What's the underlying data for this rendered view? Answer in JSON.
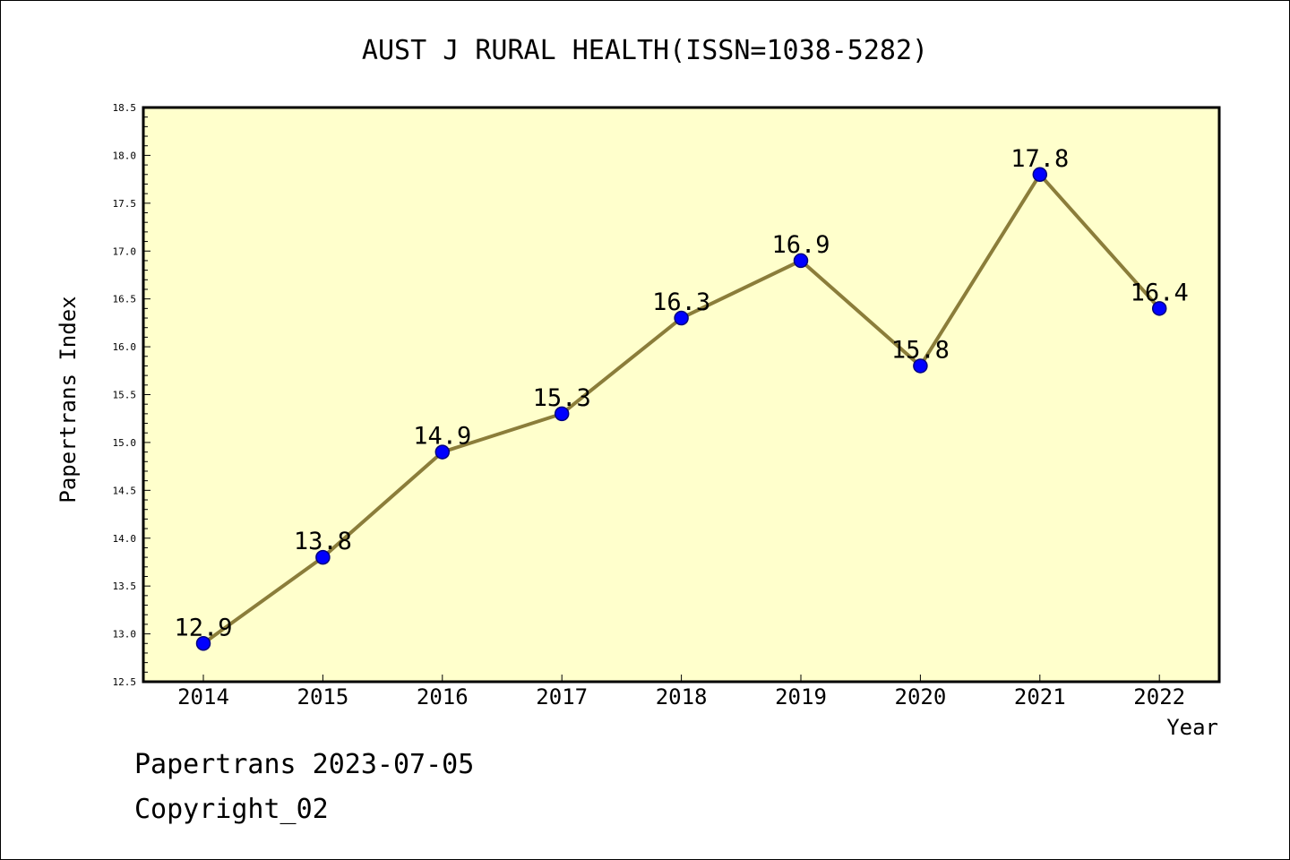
{
  "chart_data": {
    "type": "line",
    "title": "AUST J RURAL HEALTH(ISSN=1038-5282)",
    "xlabel": "Year",
    "ylabel": "Papertrans Index",
    "categories": [
      "2014",
      "2015",
      "2016",
      "2017",
      "2018",
      "2019",
      "2020",
      "2021",
      "2022"
    ],
    "values": [
      12.9,
      13.8,
      14.9,
      15.3,
      16.3,
      16.9,
      15.8,
      17.8,
      16.4
    ],
    "data_labels": [
      "12.9",
      "13.8",
      "14.9",
      "15.3",
      "16.3",
      "16.9",
      "15.8",
      "17.8",
      "16.4"
    ],
    "ylim": [
      12.5,
      18.5
    ],
    "yticks": [
      "12.5",
      "13.0",
      "13.5",
      "14.0",
      "14.5",
      "15.0",
      "15.5",
      "16.0",
      "16.5",
      "17.0",
      "17.5",
      "18.0",
      "18.5"
    ],
    "grid": false,
    "colors": {
      "plot_background": "#ffffcc",
      "line": "#8b7d3a",
      "marker": "#0000ff",
      "marker_edge": "#000080"
    }
  },
  "footer": {
    "source": "Papertrans 2023-07-05",
    "copyright": "Copyright_02"
  }
}
